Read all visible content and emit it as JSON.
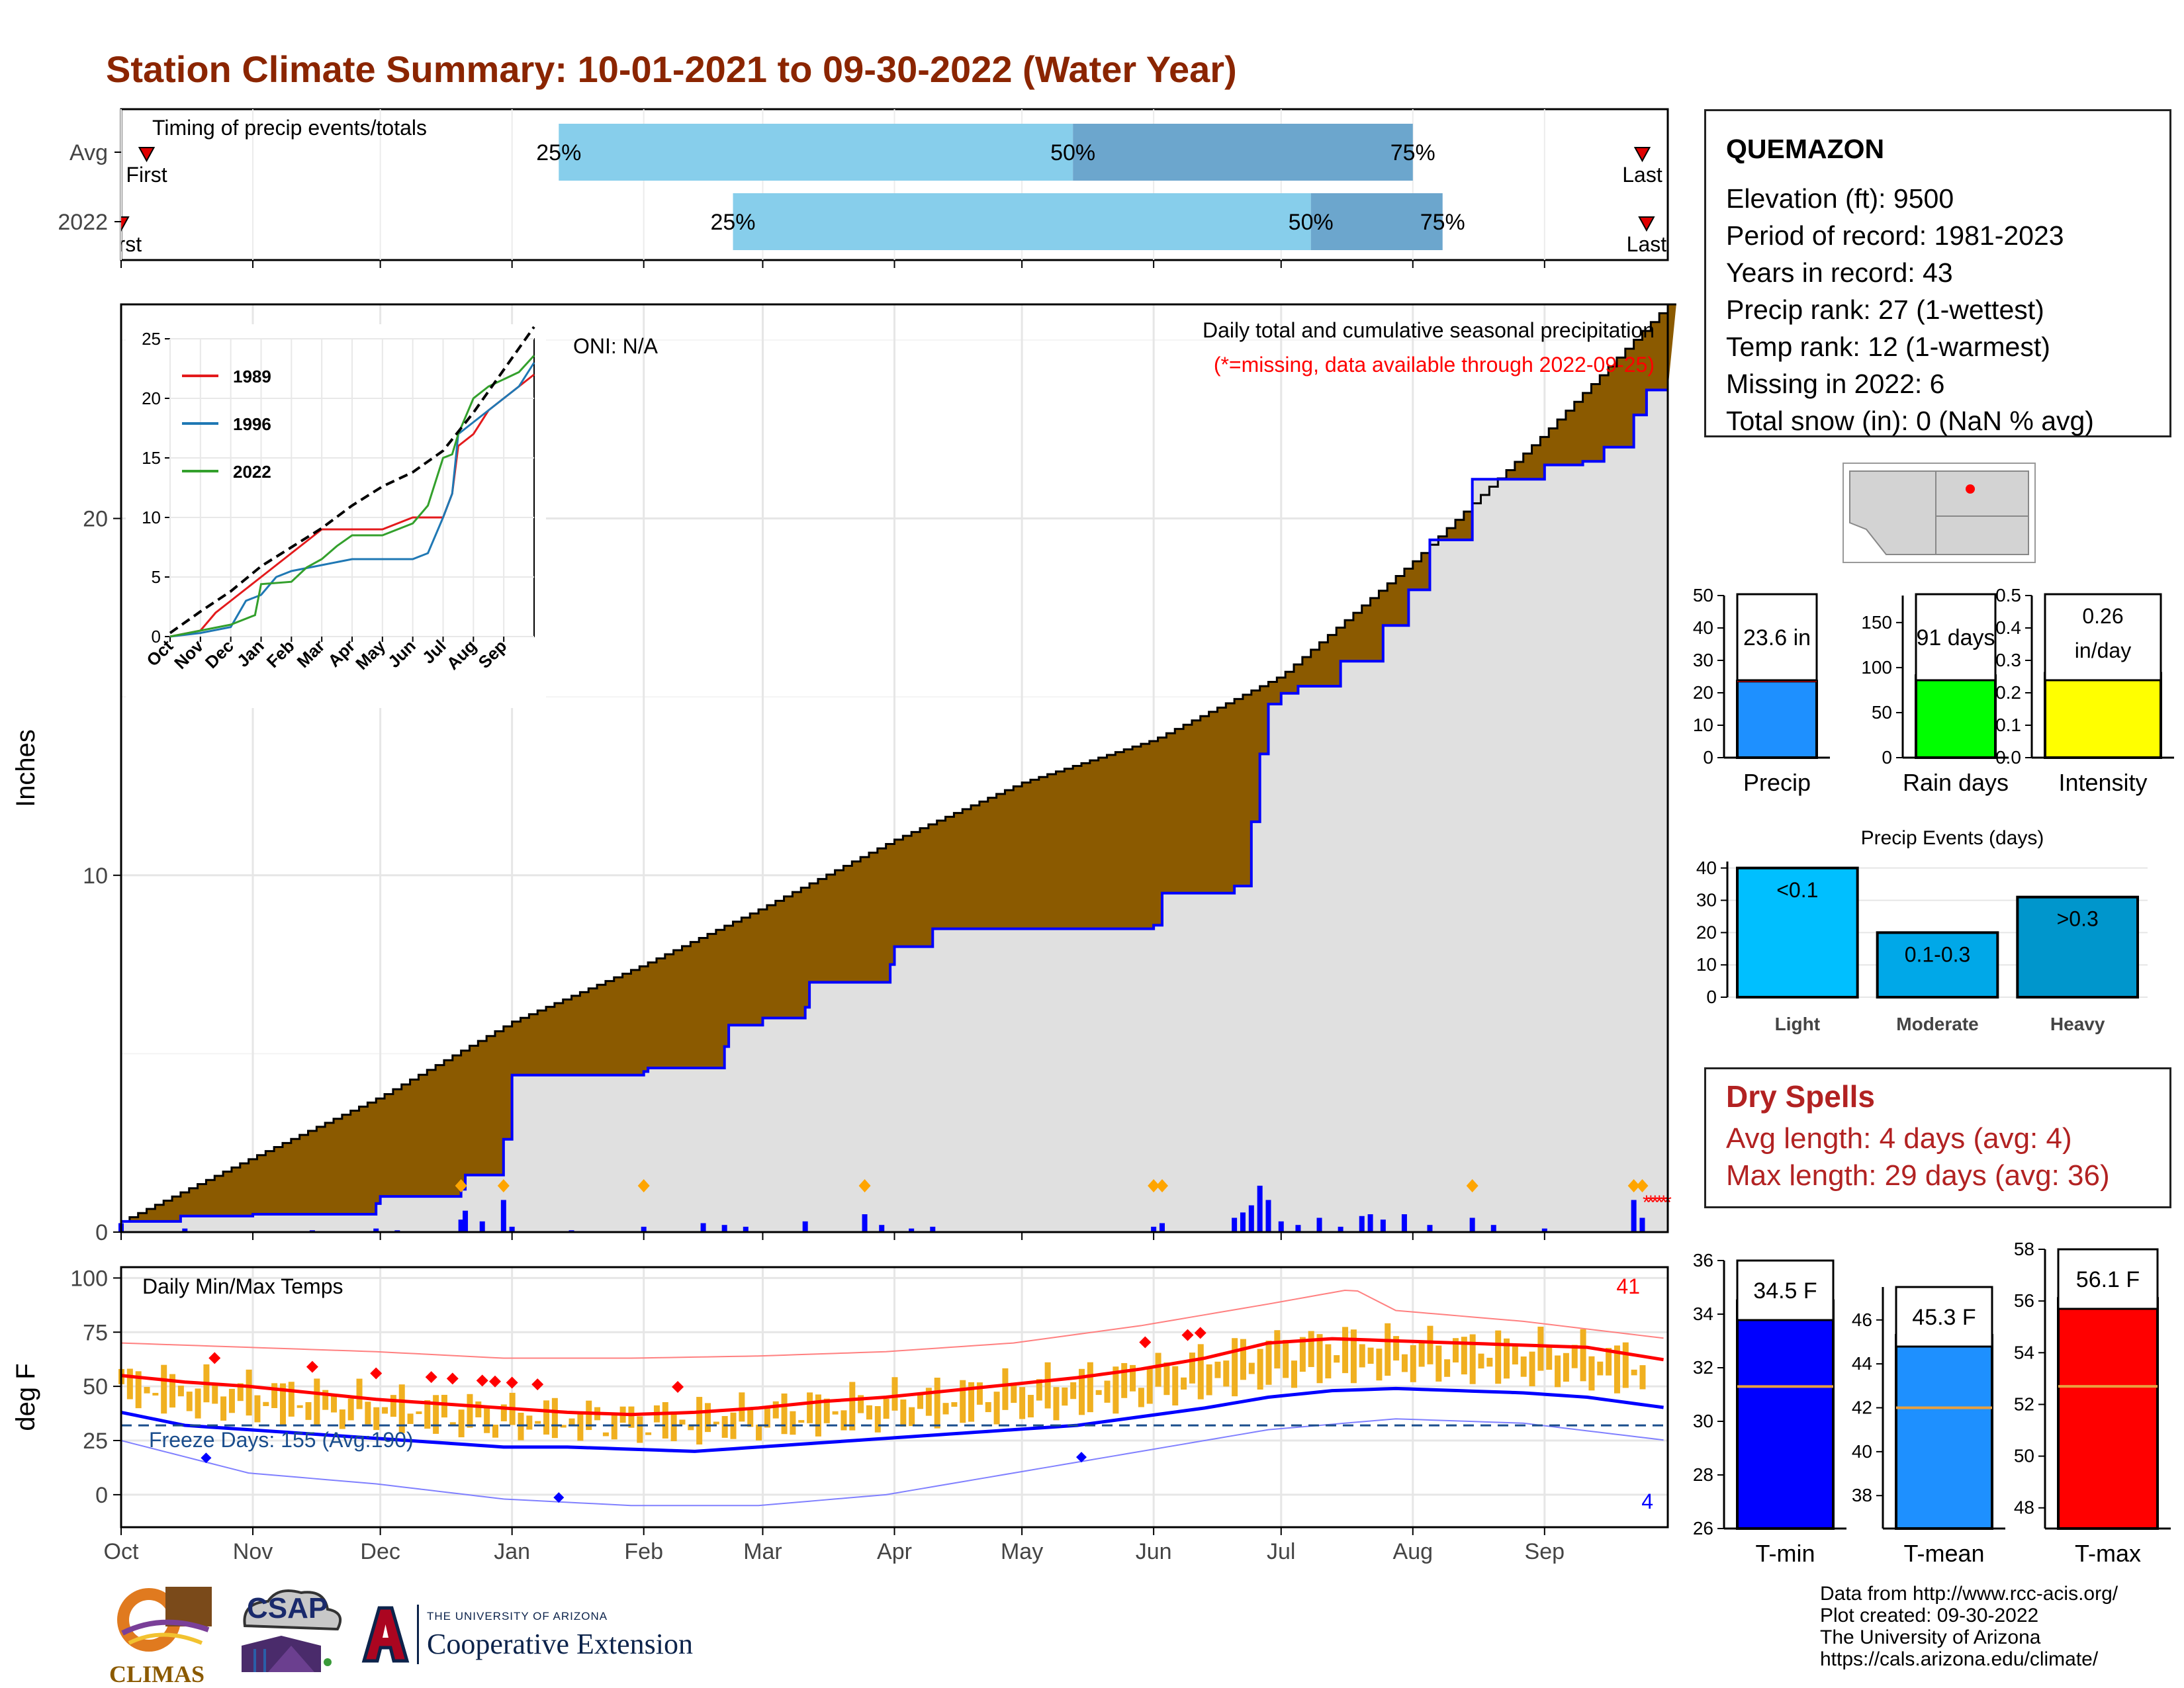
{
  "title": "Station Climate Summary: 10-01-2021 to 09-30-2022 (Water Year)",
  "months": [
    "Oct",
    "Nov",
    "Dec",
    "Jan",
    "Feb",
    "Mar",
    "Apr",
    "May",
    "Jun",
    "Jul",
    "Aug",
    "Sep"
  ],
  "station_info": {
    "name": "QUEMAZON",
    "lines": [
      "Elevation (ft): 9500",
      "Period of record: 1981-2023",
      "Years in record: 43",
      "Precip rank: 27 (1-wettest)",
      "Temp rank: 12 (1-warmest)",
      "Missing in 2022: 6",
      "Total snow (in): 0 (NaN % avg)"
    ]
  },
  "dry_spells": {
    "title": "Dry Spells",
    "avg_length": "Avg length: 4 days (avg: 4)",
    "max_length": "Max length: 29 days (avg: 36)"
  },
  "credits": [
    "Data from http://www.rcc-acis.org/",
    "Plot created: 09-30-2022",
    "The University of Arizona",
    "https://cals.arizona.edu/climate/"
  ],
  "logos": {
    "climas": "CLIMAS",
    "csap": "CSAP",
    "ua_small": "THE UNIVERSITY OF ARIZONA",
    "ua_big": "Cooperative Extension"
  },
  "colors": {
    "title": "#8b2500",
    "p25": "#87ceeb",
    "p50": "#6ca6cd",
    "brown": "#8b5a00",
    "grey_fill": "#e0e0e0",
    "blue": "#0000ff",
    "temp_bar": "#f0b020",
    "red": "#ff0000"
  },
  "chart_data": [
    {
      "id": "timing",
      "type": "bar",
      "title": "Timing of precip events/totals",
      "rows": [
        {
          "label": "Avg",
          "first": "2021-10-07",
          "p25": "2022-01-12",
          "p50": "2022-05-13",
          "p75": "2022-08-01",
          "last": "2022-09-24",
          "first_label": "First",
          "last_label": "Last"
        },
        {
          "label": "2022",
          "first": "2021-10-01",
          "p25": "2022-02-22",
          "p50": "2022-07-08",
          "p75": "2022-08-08",
          "last": "2022-09-25",
          "first_label": "First",
          "last_label": "Last"
        }
      ],
      "pct_labels": [
        "25%",
        "50%",
        "75%"
      ]
    },
    {
      "id": "precip",
      "type": "area",
      "ylabel": "Inches",
      "ylim": [
        0,
        26
      ],
      "yticks": [
        0,
        10,
        20
      ],
      "oni_label": "ONI: N/A",
      "annotation": "Daily total and cumulative seasonal precipitation",
      "annotation_missing": "(*=missing, data available through 2022-09-25)",
      "avg_cumulative": {
        "x": [
          "2021-10-01",
          "2021-11-01",
          "2021-12-01",
          "2022-01-01",
          "2022-02-01",
          "2022-03-01",
          "2022-04-01",
          "2022-05-01",
          "2022-06-01",
          "2022-07-01",
          "2022-08-01",
          "2022-09-01",
          "2022-09-30"
        ],
        "y": [
          0.3,
          2.1,
          3.8,
          5.9,
          7.5,
          9.1,
          11.0,
          12.6,
          13.8,
          15.6,
          18.8,
          22.4,
          26.0
        ]
      },
      "cumulative_2022": {
        "x": [
          "2021-10-01",
          "2021-10-15",
          "2021-11-01",
          "2021-11-30",
          "2021-12-01",
          "2021-12-20",
          "2021-12-21",
          "2021-12-30",
          "2022-01-01",
          "2022-02-01",
          "2022-02-02",
          "2022-02-20",
          "2022-02-21",
          "2022-03-01",
          "2022-03-11",
          "2022-03-12",
          "2022-03-31",
          "2022-04-01",
          "2022-04-10",
          "2022-05-31",
          "2022-06-01",
          "2022-06-03",
          "2022-06-20",
          "2022-06-24",
          "2022-06-26",
          "2022-06-28",
          "2022-07-01",
          "2022-07-05",
          "2022-07-15",
          "2022-07-25",
          "2022-07-31",
          "2022-08-05",
          "2022-08-15",
          "2022-09-01",
          "2022-09-10",
          "2022-09-15",
          "2022-09-20",
          "2022-09-22",
          "2022-09-25",
          "2022-09-30"
        ],
        "y": [
          0.3,
          0.45,
          0.5,
          0.8,
          1.0,
          1.2,
          1.6,
          2.6,
          4.4,
          4.5,
          4.6,
          5.2,
          5.8,
          6.0,
          6.3,
          7.0,
          7.5,
          8.0,
          8.5,
          8.5,
          8.6,
          9.5,
          9.7,
          11.5,
          13.4,
          14.8,
          15.1,
          15.3,
          16.0,
          17.0,
          18.0,
          19.4,
          21.1,
          21.5,
          21.6,
          22.0,
          22.0,
          22.9,
          23.6,
          23.6
        ]
      },
      "daily_bars": [
        [
          "2021-10-01",
          0.25
        ],
        [
          "2021-10-16",
          0.1
        ],
        [
          "2021-11-15",
          0.05
        ],
        [
          "2021-11-30",
          0.1
        ],
        [
          "2021-12-05",
          0.05
        ],
        [
          "2021-12-20",
          0.35
        ],
        [
          "2021-12-21",
          0.6
        ],
        [
          "2021-12-25",
          0.3
        ],
        [
          "2021-12-30",
          0.9
        ],
        [
          "2022-01-01",
          0.15
        ],
        [
          "2022-01-15",
          0.05
        ],
        [
          "2022-02-01",
          0.15
        ],
        [
          "2022-02-15",
          0.25
        ],
        [
          "2022-02-20",
          0.2
        ],
        [
          "2022-02-25",
          0.15
        ],
        [
          "2022-03-11",
          0.3
        ],
        [
          "2022-03-25",
          0.5
        ],
        [
          "2022-03-29",
          0.2
        ],
        [
          "2022-04-05",
          0.1
        ],
        [
          "2022-04-10",
          0.15
        ],
        [
          "2022-06-01",
          0.15
        ],
        [
          "2022-06-03",
          0.25
        ],
        [
          "2022-06-20",
          0.4
        ],
        [
          "2022-06-22",
          0.55
        ],
        [
          "2022-06-24",
          0.75
        ],
        [
          "2022-06-26",
          1.3
        ],
        [
          "2022-06-28",
          0.9
        ],
        [
          "2022-07-01",
          0.3
        ],
        [
          "2022-07-05",
          0.2
        ],
        [
          "2022-07-10",
          0.4
        ],
        [
          "2022-07-15",
          0.15
        ],
        [
          "2022-07-20",
          0.45
        ],
        [
          "2022-07-22",
          0.5
        ],
        [
          "2022-07-25",
          0.35
        ],
        [
          "2022-07-30",
          0.5
        ],
        [
          "2022-08-05",
          0.2
        ],
        [
          "2022-08-15",
          0.4
        ],
        [
          "2022-08-20",
          0.2
        ],
        [
          "2022-09-01",
          0.1
        ],
        [
          "2022-09-22",
          0.9
        ],
        [
          "2022-09-24",
          0.4
        ]
      ],
      "missing_days": [
        "2022-09-25",
        "2022-09-26",
        "2022-09-27",
        "2022-09-28",
        "2022-09-29",
        "2022-09-30"
      ]
    },
    {
      "id": "precip_inset",
      "type": "line",
      "xlabels": [
        "Oct",
        "Nov",
        "Dec",
        "Jan",
        "Feb",
        "Mar",
        "Apr",
        "May",
        "Jun",
        "Jul",
        "Aug",
        "Sep"
      ],
      "ylim": [
        0,
        25
      ],
      "yticks": [
        0,
        5,
        10,
        15,
        20,
        25
      ],
      "series": [
        {
          "name": "1989",
          "color": "#e31a1c",
          "x": [
            0,
            1,
            1.5,
            2,
            2.5,
            3,
            3.5,
            4,
            4.5,
            5,
            6,
            7,
            8,
            9,
            9.3,
            9.5,
            10,
            10.5,
            11,
            11.5,
            12
          ],
          "y": [
            0,
            0.5,
            2,
            3,
            4,
            5,
            6,
            7,
            8,
            9,
            9,
            9,
            10,
            10,
            12,
            16,
            17,
            19,
            20,
            21,
            22
          ]
        },
        {
          "name": "1996",
          "color": "#1f78b4",
          "x": [
            0,
            1,
            2,
            2.5,
            3,
            3.5,
            4,
            5,
            6,
            7,
            8,
            8.5,
            9,
            9.3,
            9.5,
            10,
            10.5,
            11,
            11.5,
            12
          ],
          "y": [
            0,
            0.3,
            0.8,
            3,
            3.5,
            5,
            5.5,
            6,
            6.5,
            6.5,
            6.5,
            7,
            10,
            12,
            17,
            18,
            19,
            20,
            21,
            23
          ]
        },
        {
          "name": "2022",
          "color": "#33a02c",
          "x": [
            0,
            1,
            2,
            2.8,
            3,
            4,
            4.5,
            5,
            5.5,
            6,
            7,
            8,
            8.5,
            9,
            9.3,
            9.5,
            10,
            10.5,
            11,
            11.5,
            12
          ],
          "y": [
            0,
            0.5,
            1,
            1.8,
            4.4,
            4.6,
            5.8,
            6.5,
            7.6,
            8.5,
            8.5,
            9.5,
            11,
            15,
            15.3,
            17,
            20,
            21,
            21.6,
            22.2,
            23.6
          ]
        },
        {
          "name": "avg",
          "color": "#000000",
          "dashed": true,
          "x": [
            0,
            1,
            2,
            3,
            4,
            5,
            6,
            7,
            8,
            9,
            10,
            11,
            12
          ],
          "y": [
            0.3,
            2.1,
            3.8,
            5.9,
            7.5,
            9.1,
            11.0,
            12.6,
            13.8,
            15.6,
            18.8,
            22.4,
            26
          ]
        }
      ]
    },
    {
      "id": "temps",
      "type": "line",
      "ylabel": "deg F",
      "ylim": [
        -15,
        105
      ],
      "yticks": [
        0,
        25,
        50,
        75,
        100
      ],
      "label": "Daily Min/Max Temps",
      "freeze_label": "Freeze Days: 155 (Avg:190)",
      "max_count": "41",
      "min_count": "4",
      "freeze_line": 32,
      "avg_max": {
        "x": [
          0,
          15,
          30,
          45,
          60,
          75,
          90,
          105,
          120,
          135,
          150,
          165,
          180,
          195,
          210,
          225,
          240,
          255,
          270,
          285,
          300,
          315,
          330,
          345,
          364
        ],
        "y": [
          55,
          52,
          50,
          47,
          44,
          42,
          40,
          38,
          37,
          38,
          40,
          43,
          45,
          48,
          51,
          54,
          58,
          63,
          70,
          72,
          71,
          70,
          69,
          68,
          62
        ]
      },
      "avg_min": {
        "x": [
          0,
          15,
          30,
          45,
          60,
          75,
          90,
          105,
          120,
          135,
          150,
          165,
          180,
          195,
          210,
          225,
          240,
          255,
          270,
          285,
          300,
          315,
          330,
          345,
          364
        ],
        "y": [
          38,
          32,
          30,
          28,
          26,
          24,
          22,
          22,
          21,
          20,
          22,
          24,
          26,
          28,
          30,
          32,
          36,
          40,
          45,
          48,
          49,
          48,
          47,
          45,
          40
        ]
      },
      "record_max": {
        "x": [
          0,
          30,
          60,
          90,
          120,
          150,
          180,
          210,
          240,
          270,
          290,
          300,
          330,
          364
        ],
        "y": [
          70,
          68,
          66,
          63,
          63,
          64,
          66,
          70,
          78,
          88,
          95,
          85,
          80,
          72
        ]
      },
      "record_min": {
        "x": [
          0,
          30,
          60,
          90,
          120,
          150,
          180,
          210,
          240,
          270,
          300,
          330,
          364
        ],
        "y": [
          25,
          10,
          5,
          -2,
          -5,
          -5,
          0,
          10,
          20,
          30,
          35,
          33,
          25
        ]
      }
    },
    {
      "id": "summary_bars",
      "type": "bar",
      "panels": [
        {
          "label": "Precip",
          "value": 23.6,
          "display": "23.6 in",
          "avg": 25.5,
          "ylim": [
            0,
            50
          ],
          "yticks": [
            0,
            10,
            20,
            30,
            40,
            50
          ],
          "color": "#1e90ff"
        },
        {
          "label": "Rain days",
          "value": 91,
          "display": "91 days",
          "avg": 93,
          "ylim": [
            0,
            180
          ],
          "yticks": [
            0,
            50,
            100,
            150
          ],
          "color": "#00ff00"
        },
        {
          "label": "Intensity",
          "value": 0.26,
          "display": "0.26",
          "display2": "in/day",
          "avg": 0.275,
          "ylim": [
            0,
            0.5
          ],
          "yticks": [
            "0.0",
            "0.1",
            "0.2",
            "0.3",
            "0.4",
            "0.5"
          ],
          "color": "#ffff00"
        }
      ]
    },
    {
      "id": "precip_events",
      "type": "bar",
      "title": "Precip Events (days)",
      "categories": [
        "Light",
        "Moderate",
        "Heavy"
      ],
      "values": [
        40,
        20,
        31
      ],
      "bar_labels": [
        "<0.1",
        "0.1-0.3",
        ">0.3"
      ],
      "colors": [
        "#00bfff",
        "#00a8e8",
        "#0096cc"
      ],
      "ylim": [
        0,
        42
      ],
      "yticks": [
        0,
        10,
        20,
        30,
        40
      ]
    },
    {
      "id": "temp_summary",
      "type": "bar",
      "panels": [
        {
          "label": "T-min",
          "value": 34.5,
          "display": "34.5 F",
          "avg": 31.3,
          "ylim": [
            26,
            36
          ],
          "yticks": [
            26,
            28,
            30,
            32,
            34,
            36
          ],
          "color": "#0000ff"
        },
        {
          "label": "T-mean",
          "value": 45.3,
          "display": "45.3 F",
          "avg": 42.0,
          "ylim": [
            36.5,
            47.5
          ],
          "yticks": [
            38,
            40,
            42,
            44,
            46
          ],
          "color": "#1e90ff"
        },
        {
          "label": "T-max",
          "value": 56.1,
          "display": "56.1 F",
          "avg": 52.7,
          "ylim": [
            47.2,
            58
          ],
          "yticks": [
            48,
            50,
            52,
            54,
            56,
            58
          ],
          "color": "#ff0000"
        }
      ]
    }
  ]
}
